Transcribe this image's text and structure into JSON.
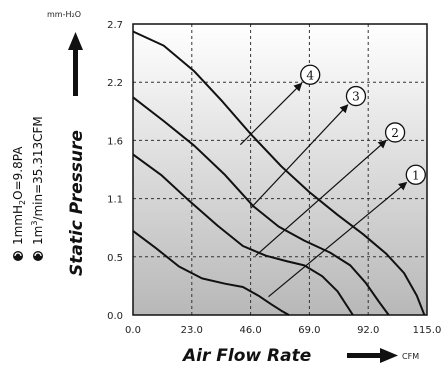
{
  "chart_data": {
    "type": "line",
    "title": "",
    "xlabel": "Air Flow Rate",
    "xunit": "CFM",
    "ylabel": "Static Pressure",
    "yunit": "mm-H2O",
    "xlim": [
      0,
      115
    ],
    "ylim": [
      0,
      2.7
    ],
    "x_ticks": [
      "0.0",
      "23.0",
      "46.0",
      "69.0",
      "92.0",
      "115.0"
    ],
    "y_ticks": [
      "0.0",
      "0.5",
      "1.1",
      "1.6",
      "2.2",
      "2.7"
    ],
    "grid": true,
    "conversions": [
      "1mmH2O=9.8PA",
      "1m3/min=35.313CFM"
    ],
    "series": [
      {
        "name": "①",
        "points": [
          [
            0,
            0.78
          ],
          [
            9,
            0.62
          ],
          [
            18,
            0.45
          ],
          [
            27,
            0.34
          ],
          [
            36,
            0.29
          ],
          [
            43,
            0.26
          ],
          [
            49,
            0.18
          ],
          [
            54,
            0.1
          ],
          [
            58,
            0.04
          ],
          [
            61,
            0.0
          ]
        ]
      },
      {
        "name": "②",
        "points": [
          [
            0,
            1.49
          ],
          [
            11,
            1.3
          ],
          [
            22,
            1.06
          ],
          [
            33,
            0.83
          ],
          [
            43,
            0.64
          ],
          [
            52,
            0.55
          ],
          [
            60,
            0.5
          ],
          [
            67,
            0.46
          ],
          [
            74,
            0.36
          ],
          [
            80,
            0.22
          ],
          [
            86,
            0.0
          ]
        ]
      },
      {
        "name": "③",
        "points": [
          [
            0,
            2.02
          ],
          [
            12,
            1.8
          ],
          [
            24,
            1.57
          ],
          [
            36,
            1.3
          ],
          [
            47,
            1.01
          ],
          [
            57,
            0.82
          ],
          [
            67,
            0.69
          ],
          [
            77,
            0.58
          ],
          [
            85,
            0.46
          ],
          [
            91,
            0.3
          ],
          [
            96,
            0.13
          ],
          [
            100,
            0.0
          ]
        ]
      },
      {
        "name": "④",
        "points": [
          [
            0,
            2.63
          ],
          [
            12,
            2.5
          ],
          [
            24,
            2.26
          ],
          [
            35,
            1.98
          ],
          [
            46,
            1.68
          ],
          [
            58,
            1.38
          ],
          [
            69,
            1.14
          ],
          [
            80,
            0.93
          ],
          [
            90,
            0.75
          ],
          [
            99,
            0.57
          ],
          [
            106,
            0.39
          ],
          [
            111,
            0.18
          ],
          [
            114,
            0.0
          ]
        ]
      }
    ],
    "callouts": [
      {
        "name": "①",
        "from": [
          53,
          0.17
        ],
        "to": [
          107,
          1.23
        ]
      },
      {
        "name": "②",
        "from": [
          48,
          0.55
        ],
        "to": [
          99,
          1.62
        ]
      },
      {
        "name": "③",
        "from": [
          46,
          0.99
        ],
        "to": [
          84,
          1.95
        ]
      },
      {
        "name": "④",
        "from": [
          42,
          1.58
        ],
        "to": [
          66,
          2.15
        ]
      }
    ]
  }
}
